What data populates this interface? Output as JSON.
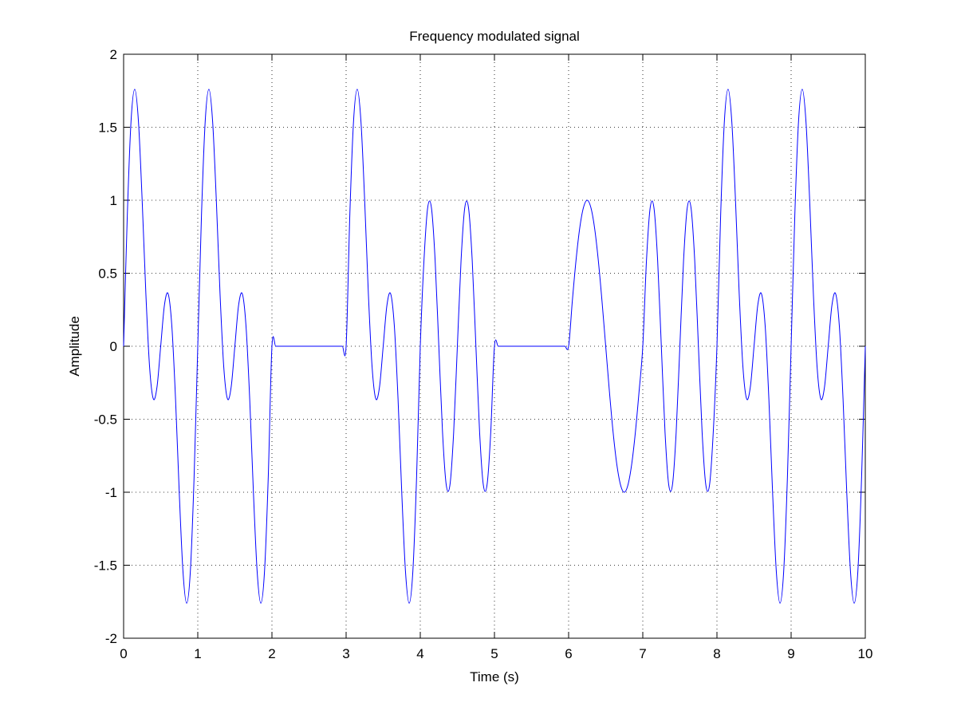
{
  "chart_data": {
    "type": "line",
    "title": "Frequency modulated signal",
    "x_label": "Time (s)",
    "y_label": "Amplitude",
    "xlim": [
      0,
      10
    ],
    "ylim": [
      -2,
      2
    ],
    "xticks": [
      0,
      1,
      2,
      3,
      4,
      5,
      6,
      7,
      8,
      9,
      10
    ],
    "yticks": [
      -2,
      -1.5,
      -1,
      -0.5,
      0,
      0.5,
      1,
      1.5,
      2
    ],
    "grid": true,
    "x": [
      0,
      0.05,
      0.1,
      0.15,
      0.2,
      0.25,
      0.3,
      0.35,
      0.4,
      0.45,
      0.5,
      0.55,
      0.6,
      0.65,
      0.7,
      0.75,
      0.8,
      0.85,
      0.9,
      0.95,
      1,
      1.05,
      1.1,
      1.15,
      1.2,
      1.25,
      1.3,
      1.35,
      1.4,
      1.45,
      1.5,
      1.55,
      1.6,
      1.65,
      1.7,
      1.75,
      1.8,
      1.85,
      1.9,
      1.95,
      2,
      2.05,
      2.1,
      2.15,
      2.2,
      2.25,
      2.3,
      2.35,
      2.4,
      2.45,
      2.5,
      2.55,
      2.6,
      2.65,
      2.7,
      2.75,
      2.8,
      2.85,
      2.9,
      2.95,
      3,
      3.05,
      3.1,
      3.15,
      3.2,
      3.25,
      3.3,
      3.35,
      3.4,
      3.45,
      3.5,
      3.55,
      3.6,
      3.65,
      3.7,
      3.75,
      3.8,
      3.85,
      3.9,
      3.95,
      4,
      4.05,
      4.1,
      4.15,
      4.2,
      4.25,
      4.3,
      4.35,
      4.4,
      4.45,
      4.5,
      4.55,
      4.6,
      4.65,
      4.7,
      4.75,
      4.8,
      4.85,
      4.9,
      4.95,
      5,
      5.05,
      5.1,
      5.15,
      5.2,
      5.25,
      5.3,
      5.35,
      5.4,
      5.45,
      5.5,
      5.55,
      5.6,
      5.65,
      5.7,
      5.75,
      5.8,
      5.85,
      5.9,
      5.95,
      6,
      6.05,
      6.1,
      6.15,
      6.2,
      6.25,
      6.3,
      6.35,
      6.4,
      6.45,
      6.5,
      6.55,
      6.6,
      6.65,
      6.7,
      6.75,
      6.8,
      6.85,
      6.9,
      6.95,
      7,
      7.05,
      7.1,
      7.15,
      7.2,
      7.25,
      7.3,
      7.35,
      7.4,
      7.45,
      7.5,
      7.55,
      7.6,
      7.65,
      7.7,
      7.75,
      7.8,
      7.85,
      7.9,
      7.95,
      8,
      8.05,
      8.1,
      8.15,
      8.2,
      8.25,
      8.3,
      8.35,
      8.4,
      8.45,
      8.5,
      8.55,
      8.6,
      8.65,
      8.7,
      8.75,
      8.8,
      8.85,
      8.9,
      8.95,
      9,
      9.05,
      9.1,
      9.15,
      9.2,
      9.25,
      9.3,
      9.35,
      9.4,
      9.45,
      9.5,
      9.55,
      9.6,
      9.65,
      9.7,
      9.75,
      9.8,
      9.85,
      9.9,
      9.95,
      10
    ],
    "series": [
      {
        "color": "#0000ff",
        "values": [
          0,
          0.9,
          1.54,
          1.76,
          1.54,
          1,
          0.36,
          -0.14,
          -0.36,
          -0.28,
          0,
          0.28,
          0.36,
          0.14,
          -0.36,
          -1,
          -1.54,
          -1.76,
          -1.54,
          -0.9,
          0,
          0.9,
          1.54,
          1.76,
          1.54,
          1,
          0.36,
          -0.14,
          -0.36,
          -0.28,
          0,
          0.28,
          0.36,
          0.14,
          -0.36,
          -1,
          -1.54,
          -1.76,
          -1.54,
          -0.9,
          0,
          0,
          0,
          0,
          0,
          0,
          0,
          0,
          0,
          0,
          0,
          0,
          0,
          0,
          0,
          0,
          0,
          0,
          0,
          0,
          0,
          0.9,
          1.54,
          1.76,
          1.54,
          1,
          0.36,
          -0.14,
          -0.36,
          -0.28,
          0,
          0.28,
          0.36,
          0.14,
          -0.36,
          -1,
          -1.54,
          -1.76,
          -1.54,
          -0.9,
          0,
          0.59,
          0.95,
          0.95,
          0.59,
          0,
          -0.59,
          -0.95,
          -0.95,
          -0.59,
          0,
          0.59,
          0.95,
          0.95,
          0.59,
          0,
          -0.59,
          -0.95,
          -0.95,
          -0.59,
          0,
          0,
          0,
          0,
          0,
          0,
          0,
          0,
          0,
          0,
          0,
          0,
          0,
          0,
          0,
          0,
          0,
          0,
          0,
          0,
          0,
          0.31,
          0.59,
          0.81,
          0.95,
          1,
          0.95,
          0.81,
          0.59,
          0.31,
          0,
          -0.31,
          -0.59,
          -0.81,
          -0.95,
          -1,
          -0.95,
          -0.81,
          -0.59,
          -0.31,
          0,
          0.59,
          0.95,
          0.95,
          0.59,
          0,
          -0.59,
          -0.95,
          -0.95,
          -0.59,
          0,
          0.59,
          0.95,
          0.95,
          0.59,
          0,
          -0.59,
          -0.95,
          -0.95,
          -0.59,
          0,
          0.9,
          1.54,
          1.76,
          1.54,
          1,
          0.36,
          -0.14,
          -0.36,
          -0.28,
          0,
          0.28,
          0.36,
          0.14,
          -0.36,
          -1,
          -1.54,
          -1.76,
          -1.54,
          -0.9,
          0,
          0.9,
          1.54,
          1.76,
          1.54,
          1,
          0.36,
          -0.14,
          -0.36,
          -0.28,
          0,
          0.28,
          0.36,
          0.14,
          -0.36,
          -1,
          -1.54,
          -1.76,
          -1.54,
          -0.9,
          0
        ]
      }
    ]
  }
}
